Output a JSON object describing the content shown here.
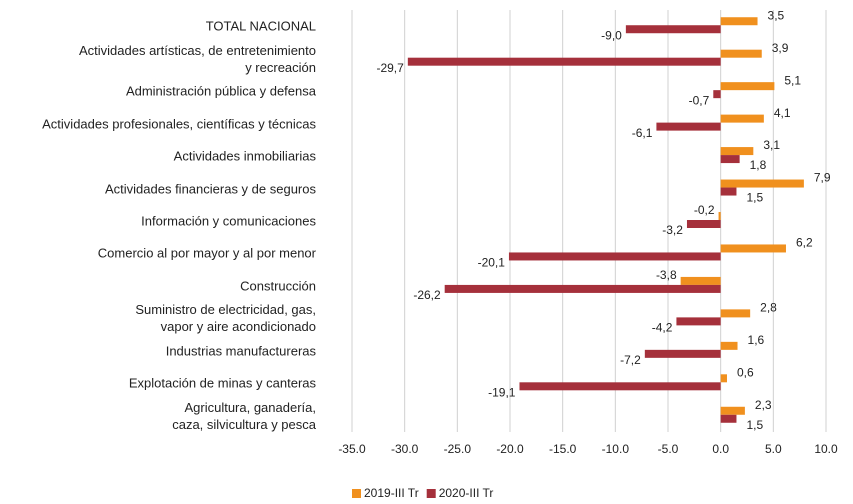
{
  "chart_data": {
    "type": "hbar",
    "categories": [
      "TOTAL NACIONAL",
      "Actividades artísticas, de entretenimiento\ny recreación",
      "Administración pública y defensa",
      "Actividades profesionales, científicas y técnicas",
      "Actividades inmobiliarias",
      "Actividades financieras y de seguros",
      "Información y comunicaciones",
      "Comercio al por mayor y al por menor",
      "Construcción",
      "Suministro de electricidad, gas,\nvapor y aire acondicionado",
      "Industrias manufactureras",
      "Explotación de minas y canteras",
      "Agricultura, ganadería,\ncaza, silvicultura y pesca"
    ],
    "series": [
      {
        "name": "2019-III Tr",
        "color": "#f0901e",
        "values": [
          3.5,
          3.9,
          5.1,
          4.1,
          3.1,
          7.9,
          -0.2,
          6.2,
          -3.8,
          2.8,
          1.6,
          0.6,
          2.3
        ],
        "value_labels": [
          "3,5",
          "3,9",
          "5,1",
          "4,1",
          "3,1",
          "7,9",
          "-0,2",
          "6,2",
          "-3,8",
          "2,8",
          "1,6",
          "0,6",
          "2,3"
        ]
      },
      {
        "name": "2020-III Tr",
        "color": "#a5303b",
        "values": [
          -9.0,
          -29.7,
          -0.7,
          -6.1,
          1.8,
          1.5,
          -3.2,
          -20.1,
          -26.2,
          -4.2,
          -7.2,
          -19.1,
          1.5
        ],
        "value_labels": [
          "-9,0",
          "-29,7",
          "-0,7",
          "-6,1",
          "1,8",
          "1,5",
          "-3,2",
          "-20,1",
          "-26,2",
          "-4,2",
          "-7,2",
          "-19,1",
          "1,5"
        ]
      }
    ],
    "xlim": [
      -35,
      10
    ],
    "xticks": [
      {
        "value": -35,
        "label": "-35.0"
      },
      {
        "value": -30,
        "label": "-30.0"
      },
      {
        "value": -25,
        "label": "-25.0"
      },
      {
        "value": -20,
        "label": "-20.0"
      },
      {
        "value": -15,
        "label": "-15.0"
      },
      {
        "value": -10,
        "label": "-10.0"
      },
      {
        "value": -5,
        "label": "-5.0"
      },
      {
        "value": 0,
        "label": "0.0"
      },
      {
        "value": 5,
        "label": "5.0"
      },
      {
        "value": 10,
        "label": "10.0"
      }
    ],
    "grid": true,
    "legend": "bottom"
  }
}
